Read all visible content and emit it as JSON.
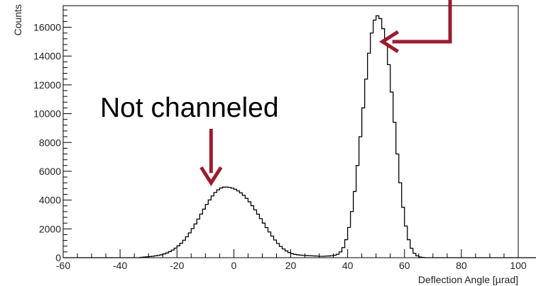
{
  "chart_data": {
    "type": "bar",
    "title": "",
    "xlabel": "Deflection Angle [µrad]",
    "ylabel": "Counts",
    "xlim": [
      -60,
      100
    ],
    "ylim": [
      0,
      17500
    ],
    "x_ticks": [
      -60,
      -40,
      -20,
      0,
      20,
      40,
      60,
      80,
      100
    ],
    "y_ticks": [
      0,
      2000,
      4000,
      6000,
      8000,
      10000,
      12000,
      14000,
      16000
    ],
    "grid": false,
    "bin_width": 1,
    "bin_range": [
      -60,
      100
    ],
    "series": [
      {
        "values": [
          0,
          0,
          0,
          0,
          0,
          0,
          0,
          0,
          0,
          0,
          0,
          0,
          0,
          0,
          0,
          0,
          0,
          0,
          0,
          0,
          0,
          0,
          0,
          0,
          0,
          0,
          0,
          25,
          40,
          60,
          80,
          100,
          130,
          160,
          200,
          260,
          330,
          420,
          530,
          660,
          820,
          1000,
          1210,
          1450,
          1720,
          2020,
          2340,
          2680,
          3030,
          3370,
          3700,
          4010,
          4290,
          4530,
          4710,
          4840,
          4900,
          4900,
          4880,
          4830,
          4750,
          4640,
          4500,
          4330,
          4120,
          3880,
          3610,
          3320,
          3020,
          2710,
          2400,
          2090,
          1790,
          1500,
          1230,
          990,
          780,
          610,
          470,
          360,
          280,
          230,
          200,
          180,
          160,
          150,
          140,
          130,
          120,
          110,
          100,
          100,
          110,
          120,
          140,
          170,
          240,
          400,
          700,
          1250,
          2100,
          3200,
          4600,
          6400,
          8400,
          10400,
          12400,
          14200,
          15600,
          16500,
          16800,
          16600,
          15900,
          14900,
          13400,
          11500,
          9400,
          7200,
          5200,
          3500,
          2200,
          1250,
          650,
          300,
          130,
          50,
          20,
          0,
          0,
          0,
          0,
          0,
          0,
          0,
          0,
          0,
          0,
          0,
          0,
          0,
          0,
          0,
          0,
          0,
          0,
          0,
          0,
          0,
          0,
          0,
          0,
          0,
          0,
          0,
          0,
          0,
          0,
          0,
          0,
          0,
          0,
          0,
          0,
          0,
          0,
          0,
          0,
          0
        ]
      }
    ],
    "annotations": [
      {
        "text": "Not channeled",
        "arrow": "down",
        "points_to": [
          -8,
          4900
        ]
      },
      {
        "text": "",
        "arrow": "left",
        "points_to": [
          51,
          15000
        ]
      }
    ],
    "colors": {
      "line": "#000000",
      "arrow": "#9b1c2e",
      "axis": "#000000"
    }
  }
}
